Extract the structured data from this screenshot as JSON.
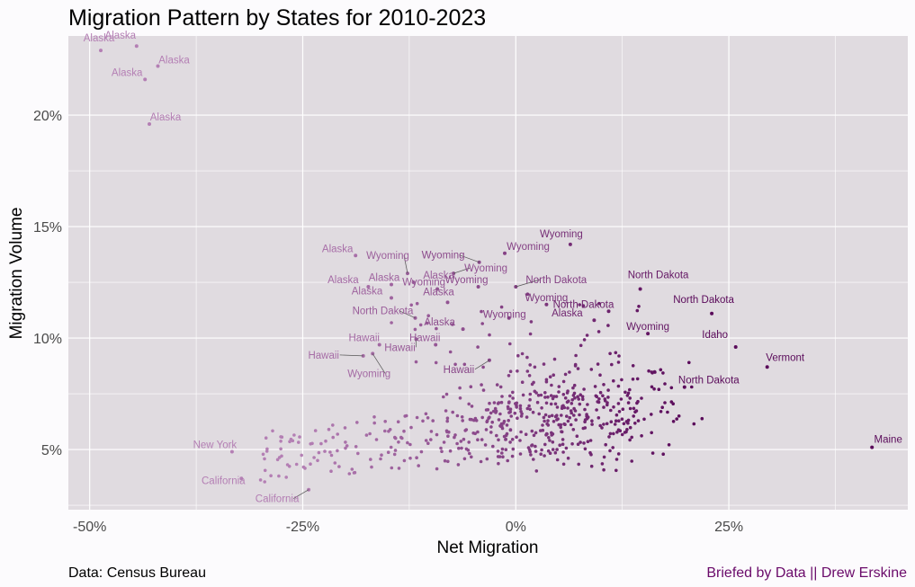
{
  "chart_data": {
    "type": "scatter",
    "title": "Migration Pattern by States for 2010-2023",
    "xlabel": "Net Migration",
    "ylabel": "Migration Volume",
    "xlim": [
      -0.525,
      0.46
    ],
    "ylim": [
      0.023,
      0.2355
    ],
    "x_ticks": [
      {
        "value": -0.5,
        "label": "-50%"
      },
      {
        "value": -0.25,
        "label": "-25%"
      },
      {
        "value": 0,
        "label": "0%"
      },
      {
        "value": 0.25,
        "label": "25%"
      }
    ],
    "y_ticks": [
      {
        "value": 0.05,
        "label": "5%"
      },
      {
        "value": 0.1,
        "label": "10%"
      },
      {
        "value": 0.15,
        "label": "15%"
      },
      {
        "value": 0.2,
        "label": "20%"
      }
    ],
    "grid": true,
    "colors": {
      "low": "#b47fb4",
      "high": "#5a0a5a",
      "background": "#e0dbe0",
      "grid": "#ffffff"
    },
    "labeled_points": [
      {
        "label": "Alaska",
        "x": -0.487,
        "y": 0.229
      },
      {
        "label": "Alaska",
        "x": -0.445,
        "y": 0.231
      },
      {
        "label": "Alaska",
        "x": -0.42,
        "y": 0.222
      },
      {
        "label": "Alaska",
        "x": -0.435,
        "y": 0.216
      },
      {
        "label": "Alaska",
        "x": -0.43,
        "y": 0.196
      },
      {
        "label": "Alaska",
        "x": -0.188,
        "y": 0.137
      },
      {
        "label": "Wyoming",
        "x": -0.127,
        "y": 0.129
      },
      {
        "label": "Alaska",
        "x": -0.146,
        "y": 0.124
      },
      {
        "label": "Alaska",
        "x": -0.12,
        "y": 0.125
      },
      {
        "label": "Wyoming",
        "x": -0.073,
        "y": 0.129
      },
      {
        "label": "Alaska",
        "x": -0.173,
        "y": 0.123
      },
      {
        "label": "Wyoming",
        "x": -0.043,
        "y": 0.134
      },
      {
        "label": "Wyoming",
        "x": -0.013,
        "y": 0.138
      },
      {
        "label": "Wyoming",
        "x": 0.064,
        "y": 0.142
      },
      {
        "label": "Wyoming",
        "x": -0.092,
        "y": 0.122
      },
      {
        "label": "Wyoming",
        "x": -0.044,
        "y": 0.123
      },
      {
        "label": "Alaska",
        "x": -0.146,
        "y": 0.118
      },
      {
        "label": "Alaska",
        "x": -0.08,
        "y": 0.116
      },
      {
        "label": "Wyoming",
        "x": 0.036,
        "y": 0.115
      },
      {
        "label": "Wyoming",
        "x": -0.008,
        "y": 0.109
      },
      {
        "label": "Alaska",
        "x": 0.092,
        "y": 0.108
      },
      {
        "label": "Wyoming",
        "x": 0.155,
        "y": 0.102
      },
      {
        "label": "Alaska",
        "x": -0.062,
        "y": 0.104
      },
      {
        "label": "Hawaii",
        "x": -0.16,
        "y": 0.097
      },
      {
        "label": "Hawaii",
        "x": -0.094,
        "y": 0.097
      },
      {
        "label": "Hawaii",
        "x": -0.179,
        "y": 0.092
      },
      {
        "label": "Hawaii",
        "x": -0.117,
        "y": 0.0995
      },
      {
        "label": "Wyoming",
        "x": -0.168,
        "y": 0.093
      },
      {
        "label": "Hawaii",
        "x": -0.031,
        "y": 0.09
      },
      {
        "label": "North Dakota",
        "x": -0.118,
        "y": 0.109
      },
      {
        "label": "North Dakota",
        "x": 0.0,
        "y": 0.123
      },
      {
        "label": "North Dakota",
        "x": 0.146,
        "y": 0.122
      },
      {
        "label": "North Dakota",
        "x": 0.109,
        "y": 0.112
      },
      {
        "label": "North Dakota",
        "x": 0.23,
        "y": 0.111
      },
      {
        "label": "Idaho",
        "x": 0.258,
        "y": 0.096
      },
      {
        "label": "Vermont",
        "x": 0.295,
        "y": 0.087
      },
      {
        "label": "North Dakota",
        "x": 0.198,
        "y": 0.078
      },
      {
        "label": "Maine",
        "x": 0.418,
        "y": 0.051
      },
      {
        "label": "New York",
        "x": -0.333,
        "y": 0.049
      },
      {
        "label": "California",
        "x": -0.322,
        "y": 0.037
      },
      {
        "label": "California",
        "x": -0.243,
        "y": 0.032
      }
    ]
  },
  "footer": {
    "source": "Data: Census Bureau",
    "credit": "Briefed by Data || Drew Erskine"
  }
}
